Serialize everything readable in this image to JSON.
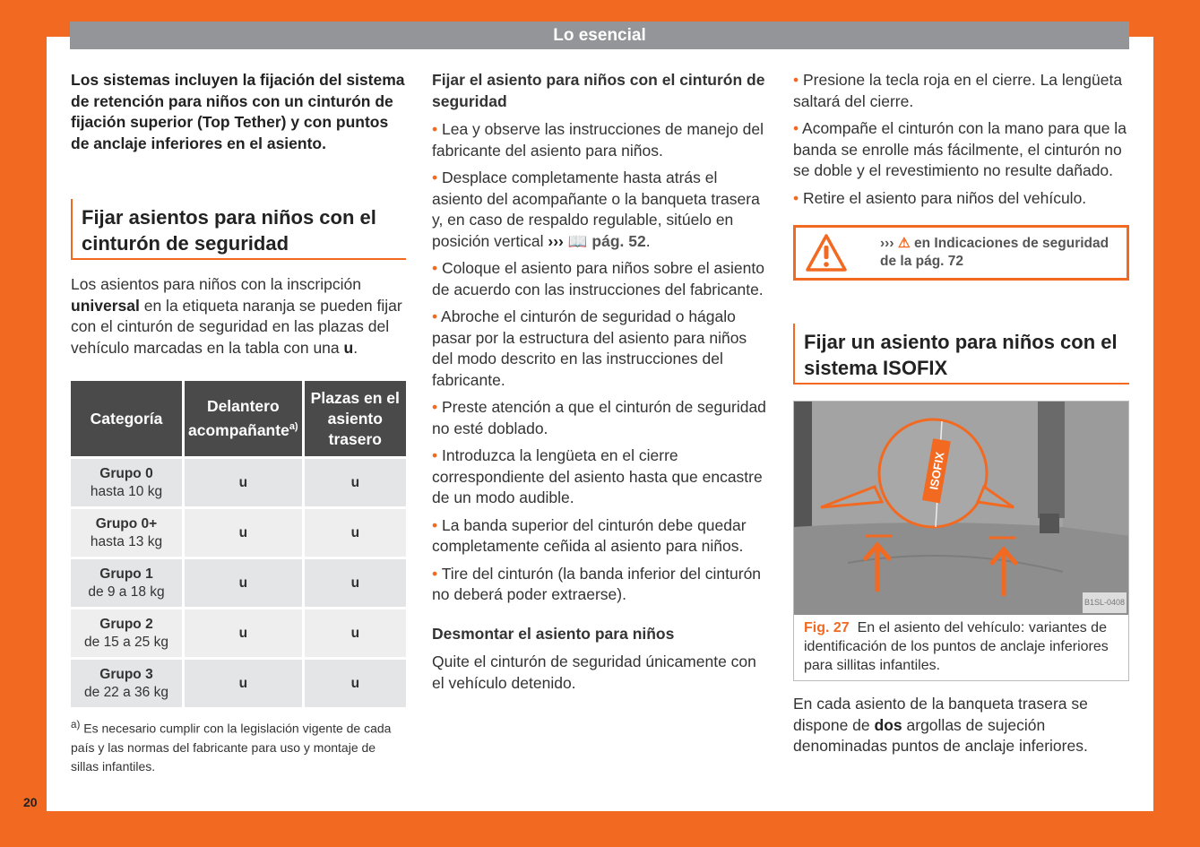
{
  "header": {
    "title": "Lo esencial"
  },
  "page_number": "20",
  "col1": {
    "intro": "Los sistemas incluyen la fijación del sistema de retención para niños con un cinturón de fijación superior (Top Tether) y con puntos de anclaje inferiores en el asiento.",
    "heading": "Fijar asientos para niños con el cinturón de seguridad",
    "para_a": "Los asientos para niños con la inscripción",
    "para_b": "universal",
    "para_c": "en la etiqueta naranja se pueden fijar con el cinturón de seguridad en las plazas del vehículo marcadas en la tabla con una",
    "para_d": "u",
    "para_e": ".",
    "table": {
      "headers": [
        "Categoría",
        "Delantero acompañante",
        "Plazas en el asiento trasero"
      ],
      "header_note": "a)",
      "rows": [
        {
          "group": "Grupo 0",
          "weight": "hasta 10 kg",
          "front": "u",
          "rear": "u"
        },
        {
          "group": "Grupo 0+",
          "weight": "hasta 13 kg",
          "front": "u",
          "rear": "u"
        },
        {
          "group": "Grupo 1",
          "weight": "de 9 a 18 kg",
          "front": "u",
          "rear": "u"
        },
        {
          "group": "Grupo 2",
          "weight": "de 15 a 25 kg",
          "front": "u",
          "rear": "u"
        },
        {
          "group": "Grupo 3",
          "weight": "de 22 a 36 kg",
          "front": "u",
          "rear": "u"
        }
      ]
    },
    "footnote_mark": "a)",
    "footnote": "Es necesario cumplir con la legislación vigente de cada país y las normas del fabricante para uso y montaje de sillas infantiles."
  },
  "col2": {
    "subheading": "Fijar el asiento para niños con el cinturón de seguridad",
    "bullets": [
      "Lea y observe las instrucciones de manejo del fabricante del asiento para niños.",
      "Desplace completamente hasta atrás el asiento del acompañante o la banqueta trasera y, en caso de respaldo regulable, sitúelo en posición vertical",
      "Coloque el asiento para niños sobre el asiento de acuerdo con las instrucciones del fabricante.",
      "Abroche el cinturón de seguridad o hágalo pasar por la estructura del asiento para niños del modo descrito en las instrucciones del fabricante.",
      "Preste atención a que el cinturón de seguridad no esté doblado.",
      "Introduzca la lengüeta en el cierre correspondiente del asiento hasta que encastre de un modo audible.",
      "La banda superior del cinturón debe quedar completamente ceñida al asiento para niños.",
      "Tire del cinturón (la banda inferior del cinturón no deberá poder extraerse)."
    ],
    "ref_arrows": "›››",
    "ref_page": "pág. 52",
    "subheading2": "Desmontar el asiento para niños",
    "para": "Quite el cinturón de seguridad únicamente con el vehículo detenido."
  },
  "col3": {
    "bullets": [
      "Presione la tecla roja en el cierre. La lengüeta saltará del cierre.",
      "Acompañe el cinturón con la mano para que la banda se enrolle más fácilmente, el cinturón no se doble y el revestimiento no resulte dañado.",
      "Retire el asiento para niños del vehículo."
    ],
    "warning": {
      "arrows": "›››",
      "text": "en Indicaciones de seguridad de la pág. 72"
    },
    "heading": "Fijar un asiento para niños con el sistema ISOFIX",
    "figure": {
      "label": "ISOFIX",
      "code": "B1SL-0408",
      "fig_no": "Fig. 27",
      "caption": "En el asiento del vehículo: variantes de identificación de los puntos de anclaje inferiores para sillitas infantiles."
    },
    "para_a": "En cada asiento de la banqueta trasera se dispone de",
    "para_b": "dos",
    "para_c": "argollas de sujeción denominadas puntos de anclaje inferiores."
  },
  "colors": {
    "accent": "#f26a21",
    "header_bar": "#939598",
    "table_header": "#4a4a4a"
  }
}
